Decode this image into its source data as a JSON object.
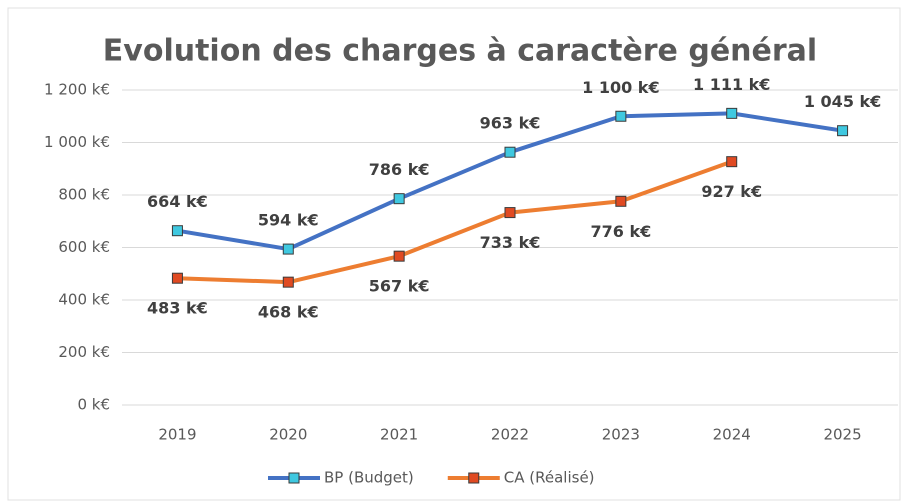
{
  "chart_data": {
    "type": "line",
    "title": "Evolution des charges à caractère général",
    "categories": [
      "2019",
      "2020",
      "2021",
      "2022",
      "2023",
      "2024",
      "2025"
    ],
    "series": [
      {
        "name": "BP (Budget)",
        "color": "#4472c4",
        "marker_color": "#3fc8e0",
        "values": [
          664,
          594,
          786,
          963,
          1100,
          1111,
          1045
        ],
        "value_labels": [
          "664 k€",
          "594 k€",
          "786 k€",
          "963 k€",
          "1 100 k€",
          "1 111 k€",
          "1 045 k€"
        ]
      },
      {
        "name": "CA (Réalisé)",
        "color": "#ed7d31",
        "marker_color": "#e04a22",
        "values": [
          483,
          468,
          567,
          733,
          776,
          927,
          null
        ],
        "value_labels": [
          "483 k€",
          "468 k€",
          "567 k€",
          "733 k€",
          "776 k€",
          "927 k€",
          null
        ]
      }
    ],
    "ylim": [
      0,
      1200
    ],
    "yticks": [
      {
        "value": 0,
        "label": "0 k€"
      },
      {
        "value": 200,
        "label": "200 k€"
      },
      {
        "value": 400,
        "label": "400 k€"
      },
      {
        "value": 600,
        "label": "600 k€"
      },
      {
        "value": 800,
        "label": "800 k€"
      },
      {
        "value": 1000,
        "label": "1 000 k€"
      },
      {
        "value": 1200,
        "label": "1 200 k€"
      }
    ],
    "grid": true,
    "legend": "bottom"
  }
}
